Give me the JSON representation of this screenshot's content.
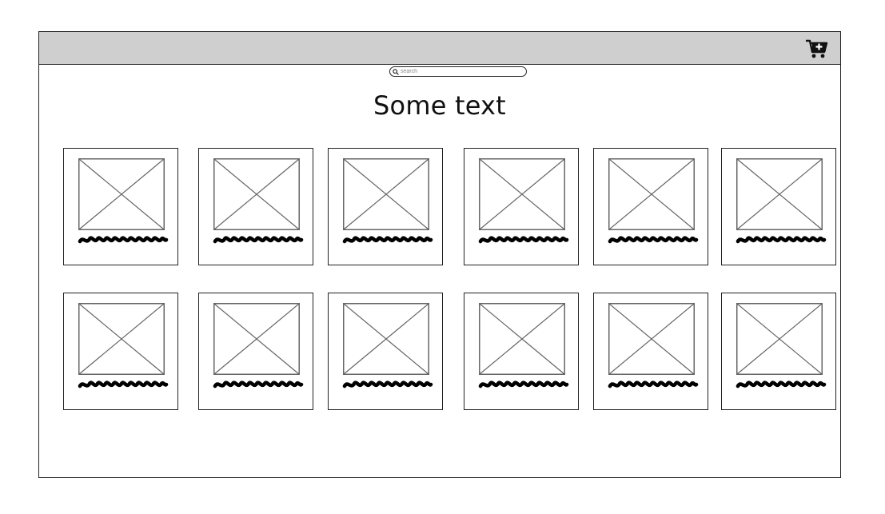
{
  "search": {
    "placeholder": "search"
  },
  "main": {
    "title": "Some text"
  },
  "icons": {
    "cart": "shopping-cart-add-icon",
    "search": "magnifier-icon",
    "image_placeholder": "image-placeholder-icon",
    "text_scribble": "scribble-text-placeholder"
  },
  "colors": {
    "topbar": "#cfcfcf",
    "border": "#222222",
    "placeholder_lines": "#666666"
  },
  "grid": {
    "rows": 2,
    "columns": 6
  }
}
